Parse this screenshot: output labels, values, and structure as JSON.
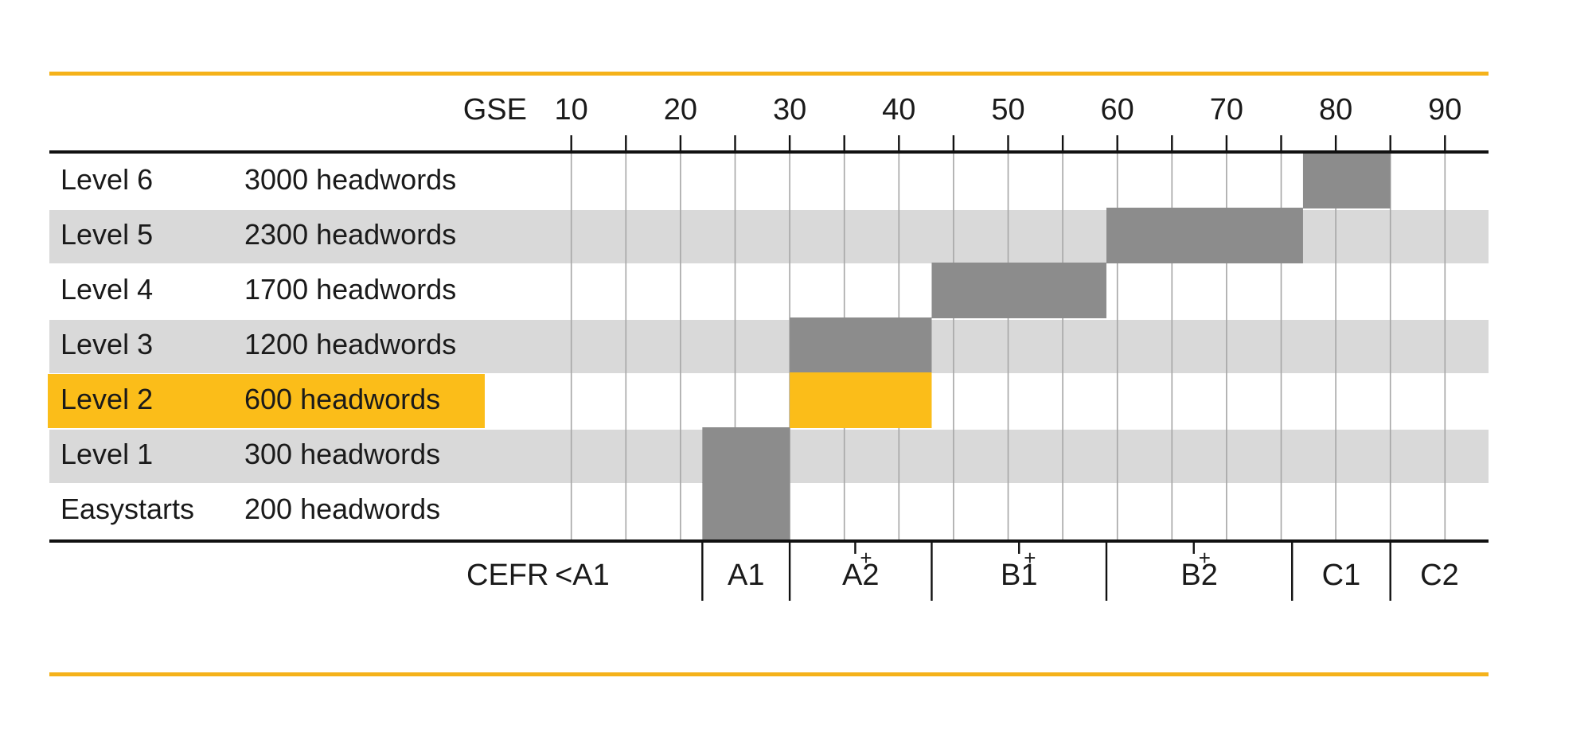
{
  "chart_data": {
    "type": "bar",
    "orientation": "horizontal-range",
    "gse_label": "GSE",
    "gse_ticks": [
      10,
      20,
      30,
      40,
      50,
      60,
      70,
      80,
      90
    ],
    "xlim": [
      0,
      94
    ],
    "cefr_label": "CEFR",
    "cefr_bands": [
      {
        "label": "<A1",
        "start": 0,
        "end": 22,
        "plus": false
      },
      {
        "label": "A1",
        "start": 22,
        "end": 30,
        "plus": false
      },
      {
        "label": "A2",
        "start": 30,
        "end": 43,
        "plus": true,
        "plus_at": 36
      },
      {
        "label": "B1",
        "start": 43,
        "end": 59,
        "plus": true,
        "plus_at": 51
      },
      {
        "label": "B2",
        "start": 59,
        "end": 76,
        "plus": true,
        "plus_at": 67
      },
      {
        "label": "C1",
        "start": 76,
        "end": 85,
        "plus": false
      },
      {
        "label": "C2",
        "start": 85,
        "end": 94,
        "plus": false
      }
    ],
    "plus_symbol": "+",
    "levels": [
      {
        "name": "Level 6",
        "headwords": "3000 headwords",
        "gse_start": 77,
        "gse_end": 85,
        "highlight": false
      },
      {
        "name": "Level 5",
        "headwords": "2300 headwords",
        "gse_start": 59,
        "gse_end": 77,
        "highlight": false
      },
      {
        "name": "Level 4",
        "headwords": "1700 headwords",
        "gse_start": 43,
        "gse_end": 59,
        "highlight": false
      },
      {
        "name": "Level 3",
        "headwords": "1200 headwords",
        "gse_start": 30,
        "gse_end": 43,
        "highlight": false
      },
      {
        "name": "Level 2",
        "headwords": "600 headwords",
        "gse_start": 30,
        "gse_end": 43,
        "highlight": true
      },
      {
        "name": "Level 1",
        "headwords": "300 headwords",
        "gse_start": 22,
        "gse_end": 30,
        "highlight": false
      },
      {
        "name": "Easystarts",
        "headwords": "200 headwords",
        "gse_start": 22,
        "gse_end": 30,
        "highlight": false
      }
    ],
    "colors": {
      "accent_line": "#f5b21a",
      "highlight": "#fbbd19",
      "range_bar": "#8c8c8c",
      "stripe": "#d9d9d9",
      "gridline": "#a6a6a6",
      "axis": "#111111"
    }
  }
}
